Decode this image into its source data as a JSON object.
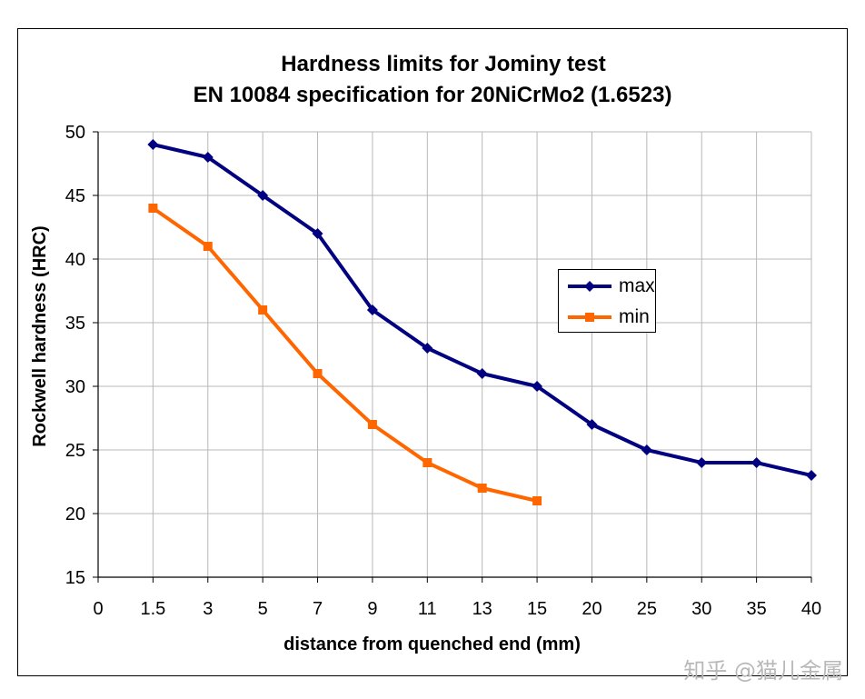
{
  "chart_data": {
    "type": "line",
    "title": "Hardness limits for Jominy  test",
    "subtitle": "EN 10084 specification for 20NiCrMo2 (1.6523)",
    "xlabel": "distance from quenched end (mm)",
    "ylabel": "Rockwell hardness (HRC)",
    "categories": [
      "0",
      "1.5",
      "3",
      "5",
      "7",
      "9",
      "11",
      "13",
      "15",
      "20",
      "25",
      "30",
      "35",
      "40"
    ],
    "ylim": [
      15,
      50
    ],
    "yticks": [
      15,
      20,
      25,
      30,
      35,
      40,
      45,
      50
    ],
    "grid": true,
    "legend_position": "right",
    "series": [
      {
        "name": "max",
        "color": "#000080",
        "marker": "diamond",
        "values": [
          null,
          49,
          48,
          45,
          42,
          36,
          33,
          31,
          30,
          27,
          25,
          24,
          24,
          23
        ]
      },
      {
        "name": "min",
        "color": "#ff6600",
        "marker": "square",
        "values": [
          null,
          44,
          41,
          36,
          31,
          27,
          24,
          22,
          21,
          null,
          null,
          null,
          null,
          null
        ]
      }
    ]
  },
  "watermark": "知乎 @猫儿金属"
}
